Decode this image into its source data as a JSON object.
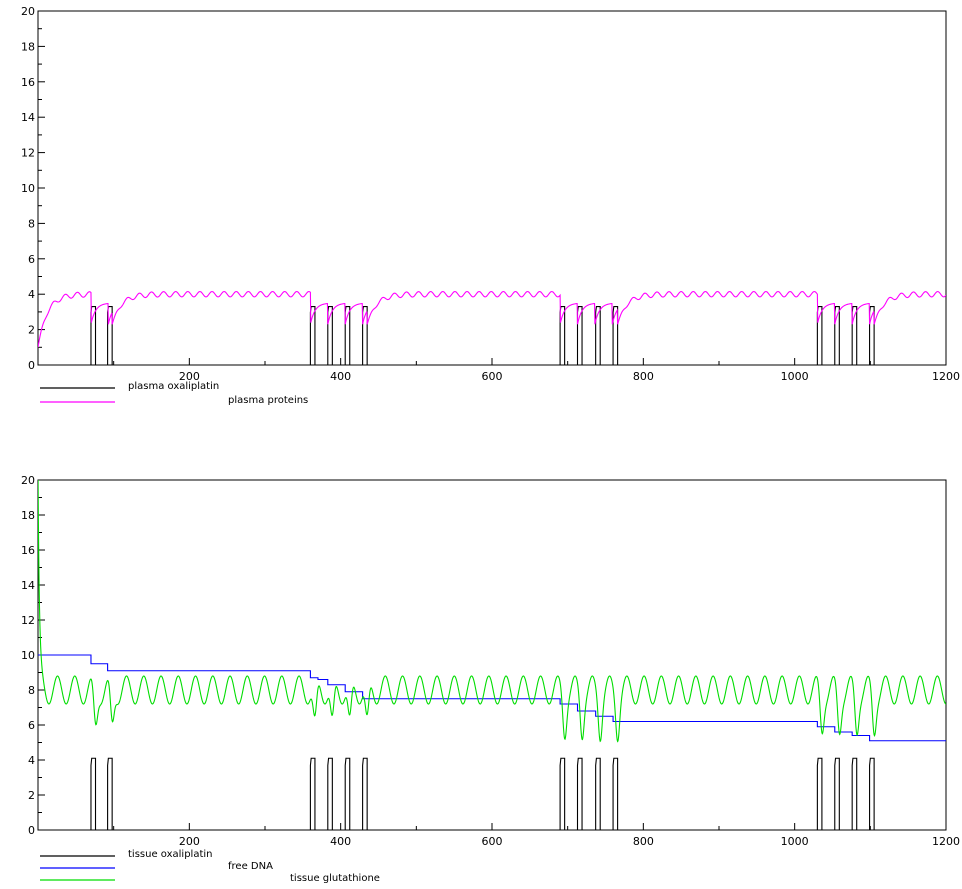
{
  "chart_data": [
    {
      "type": "line",
      "title": "",
      "xlabel": "",
      "ylabel": "",
      "xlim": [
        0,
        1200
      ],
      "ylim": [
        0,
        20
      ],
      "x_ticks": [
        200,
        400,
        600,
        800,
        1000,
        1200
      ],
      "y_ticks": [
        0,
        2,
        4,
        6,
        8,
        10,
        12,
        14,
        16,
        18,
        20
      ],
      "grid": false,
      "legend_position": "bottom-left",
      "series": [
        {
          "name": "plasma oxaliplatin",
          "color": "#000000",
          "kind": "pulses",
          "pulse_starts": [
            70,
            92,
            360,
            383,
            406,
            429,
            690,
            713,
            737,
            760,
            1030,
            1053,
            1076,
            1099
          ],
          "pulse_width": 6,
          "pulse_height": 3.3
        },
        {
          "name": "plasma proteins",
          "color": "#ff00ff",
          "kind": "damped-oscillation",
          "start_value": 1.0,
          "plateau": 4.0,
          "oscillation_amplitude": 0.15,
          "oscillation_period": 16,
          "dip_value": 2.3,
          "segments": [
            [
              0,
              70
            ],
            [
              98,
              360
            ],
            [
              435,
              690
            ],
            [
              766,
              1030
            ],
            [
              1105,
              1200
            ]
          ],
          "x_end": 1200
        }
      ]
    },
    {
      "type": "line",
      "title": "",
      "xlabel": "",
      "ylabel": "",
      "xlim": [
        0,
        1200
      ],
      "ylim": [
        0,
        20
      ],
      "x_ticks": [
        200,
        400,
        600,
        800,
        1000,
        1200
      ],
      "y_ticks": [
        0,
        2,
        4,
        6,
        8,
        10,
        12,
        14,
        16,
        18,
        20
      ],
      "grid": false,
      "legend_position": "bottom-left",
      "series": [
        {
          "name": "tissue oxaliplatin",
          "color": "#000000",
          "kind": "pulses",
          "pulse_starts": [
            70,
            92,
            360,
            383,
            406,
            429,
            690,
            713,
            737,
            760,
            1030,
            1053,
            1076,
            1099
          ],
          "pulse_width": 6,
          "pulse_height": 4.1
        },
        {
          "name": "free DNA",
          "color": "#0000ff",
          "kind": "step",
          "x": [
            0,
            70,
            92,
            360,
            370,
            383,
            406,
            429,
            690,
            713,
            737,
            760,
            1030,
            1053,
            1076,
            1099,
            1200
          ],
          "y": [
            10.0,
            9.5,
            9.1,
            8.7,
            8.6,
            8.3,
            7.9,
            7.5,
            7.2,
            6.8,
            6.5,
            6.2,
            5.9,
            5.6,
            5.4,
            5.1,
            5.1
          ]
        },
        {
          "name": "tissue glutathione",
          "color": "#00dd00",
          "kind": "oscillation",
          "initial_spike": 20,
          "mean": 8.0,
          "amplitude": 0.8,
          "period": 22.8,
          "dip_value": 5.6,
          "dip_centers": [
            76,
            98,
            366,
            389,
            412,
            435,
            696,
            719,
            743,
            766,
            1036,
            1059,
            1082,
            1105
          ],
          "x_end": 1200
        }
      ]
    }
  ]
}
